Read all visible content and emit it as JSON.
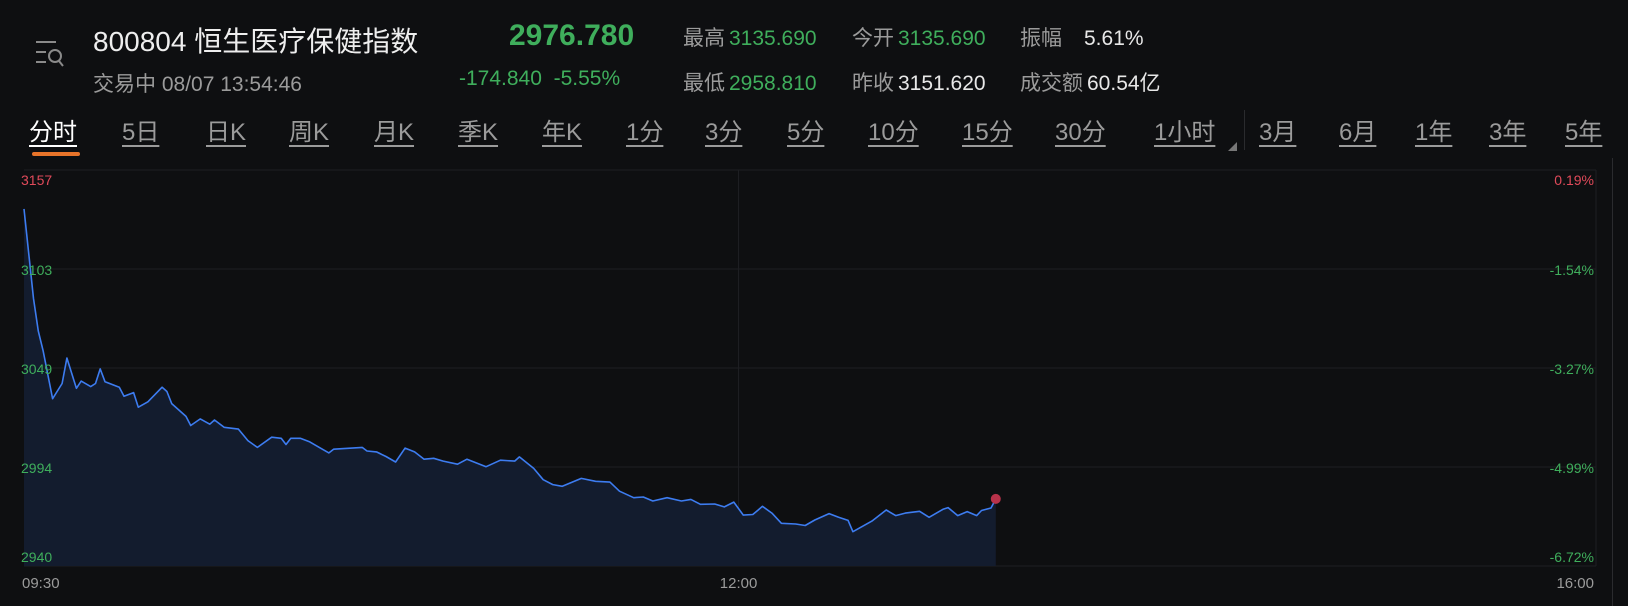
{
  "header": {
    "code": "800804",
    "name": "恒生医疗保健指数",
    "price": "2976.780",
    "status": "交易中",
    "datetime": "08/07 13:54:46",
    "change": "-174.840",
    "change_pct": "-5.55%",
    "stats": {
      "high_label": "最高",
      "high": "3135.690",
      "open_label": "今开",
      "open": "3135.690",
      "amplitude_label": "振幅",
      "amplitude": "5.61%",
      "low_label": "最低",
      "low": "2958.810",
      "prev_close_label": "昨收",
      "prev_close": "3151.620",
      "turnover_label": "成交额",
      "turnover": "60.54亿"
    }
  },
  "tabs": [
    {
      "label": "分时",
      "active": true
    },
    {
      "label": "5日"
    },
    {
      "label": "日K"
    },
    {
      "label": "周K"
    },
    {
      "label": "月K"
    },
    {
      "label": "季K"
    },
    {
      "label": "年K"
    },
    {
      "label": "1分"
    },
    {
      "label": "3分"
    },
    {
      "label": "5分"
    },
    {
      "label": "10分"
    },
    {
      "label": "15分"
    },
    {
      "label": "30分"
    },
    {
      "label": "1小时"
    },
    {
      "label": "3月"
    },
    {
      "label": "6月"
    },
    {
      "label": "1年"
    },
    {
      "label": "3年"
    },
    {
      "label": "5年"
    }
  ],
  "colors": {
    "up": "#e04a5a",
    "down": "#3fae5c",
    "line": "#3d7cf0",
    "accent": "#e8742a"
  },
  "chart_data": {
    "type": "area",
    "prev_close": 3151.62,
    "ylim": [
      2940,
      3157
    ],
    "y_ticks": [
      "3157",
      "3103",
      "3049",
      "2994",
      "2940"
    ],
    "y_ticks_right": [
      "0.19%",
      "-1.54%",
      "-3.27%",
      "-4.99%",
      "-6.72%"
    ],
    "x_ticks": [
      "09:30",
      "12:00",
      "16:00"
    ],
    "grid": true,
    "last_point_marker": true,
    "x": [
      "09:30",
      "09:32",
      "09:33",
      "09:34",
      "09:36",
      "09:38",
      "09:39",
      "09:41",
      "09:42",
      "09:44",
      "09:45",
      "09:46",
      "09:47",
      "09:50",
      "09:51",
      "09:53",
      "09:54",
      "09:56",
      "09:59",
      "10:00",
      "10:01",
      "10:04",
      "10:05",
      "10:07",
      "10:09",
      "10:10",
      "10:12",
      "10:15",
      "10:17",
      "10:19",
      "10:22",
      "10:24",
      "10:25",
      "10:26",
      "10:28",
      "10:30",
      "10:32",
      "10:34",
      "10:35",
      "10:41",
      "10:42",
      "10:44",
      "10:46",
      "10:48",
      "10:50",
      "10:52",
      "10:54",
      "10:56",
      "10:58",
      "11:01",
      "11:03",
      "11:07",
      "11:10",
      "11:13",
      "11:14",
      "11:17",
      "11:19",
      "11:21",
      "11:23",
      "11:27",
      "11:30",
      "11:33",
      "11:35",
      "11:38",
      "11:40",
      "11:42",
      "11:45",
      "11:48",
      "11:50",
      "11:52",
      "11:55",
      "11:57",
      "11:59",
      "13:01",
      "13:03",
      "13:04",
      "13:05",
      "13:07",
      "13:09",
      "13:12",
      "13:14",
      "13:16",
      "13:19",
      "13:21",
      "13:23",
      "13:24",
      "13:28",
      "13:31",
      "13:33",
      "13:35",
      "13:38",
      "13:40",
      "13:43",
      "13:44",
      "13:46",
      "13:48",
      "13:50",
      "13:51",
      "13:53",
      "13:54"
    ],
    "y": [
      3135.7,
      3086.6,
      3068.7,
      3058.0,
      3031.7,
      3040.0,
      3054.0,
      3037.4,
      3041.3,
      3038.3,
      3040.0,
      3048.0,
      3041.0,
      3038.0,
      3033.0,
      3035.0,
      3027.0,
      3030.0,
      3038.0,
      3035.6,
      3029.0,
      3022.0,
      3017.0,
      3020.6,
      3017.7,
      3020.0,
      3016.0,
      3015.0,
      3008.7,
      3005.0,
      3010.6,
      3010.0,
      3006.6,
      3010.0,
      3010.0,
      3008.0,
      3005.0,
      3002.0,
      3004.0,
      3005.0,
      3003.0,
      3002.5,
      3000.0,
      2997.0,
      3004.6,
      3002.5,
      2998.5,
      2999.0,
      2997.5,
      2995.8,
      2998.5,
      2994.4,
      2998.0,
      2997.5,
      2999.8,
      2993.5,
      2987.3,
      2984.6,
      2983.7,
      2988.0,
      2986.4,
      2986.0,
      2981.0,
      2977.4,
      2977.8,
      2975.6,
      2977.4,
      2975.6,
      2976.5,
      2973.8,
      2974.0,
      2972.4,
      2975.0,
      2967.9,
      2968.2,
      2970.4,
      2972.7,
      2969.0,
      2963.4,
      2963.0,
      2962.2,
      2965.2,
      2968.7,
      2966.7,
      2965.0,
      2958.8,
      2964.6,
      2970.7,
      2967.6,
      2969.0,
      2970.0,
      2966.7,
      2971.2,
      2972.0,
      2967.6,
      2969.8,
      2967.6,
      2970.4,
      2971.8,
      2976.78
    ]
  }
}
